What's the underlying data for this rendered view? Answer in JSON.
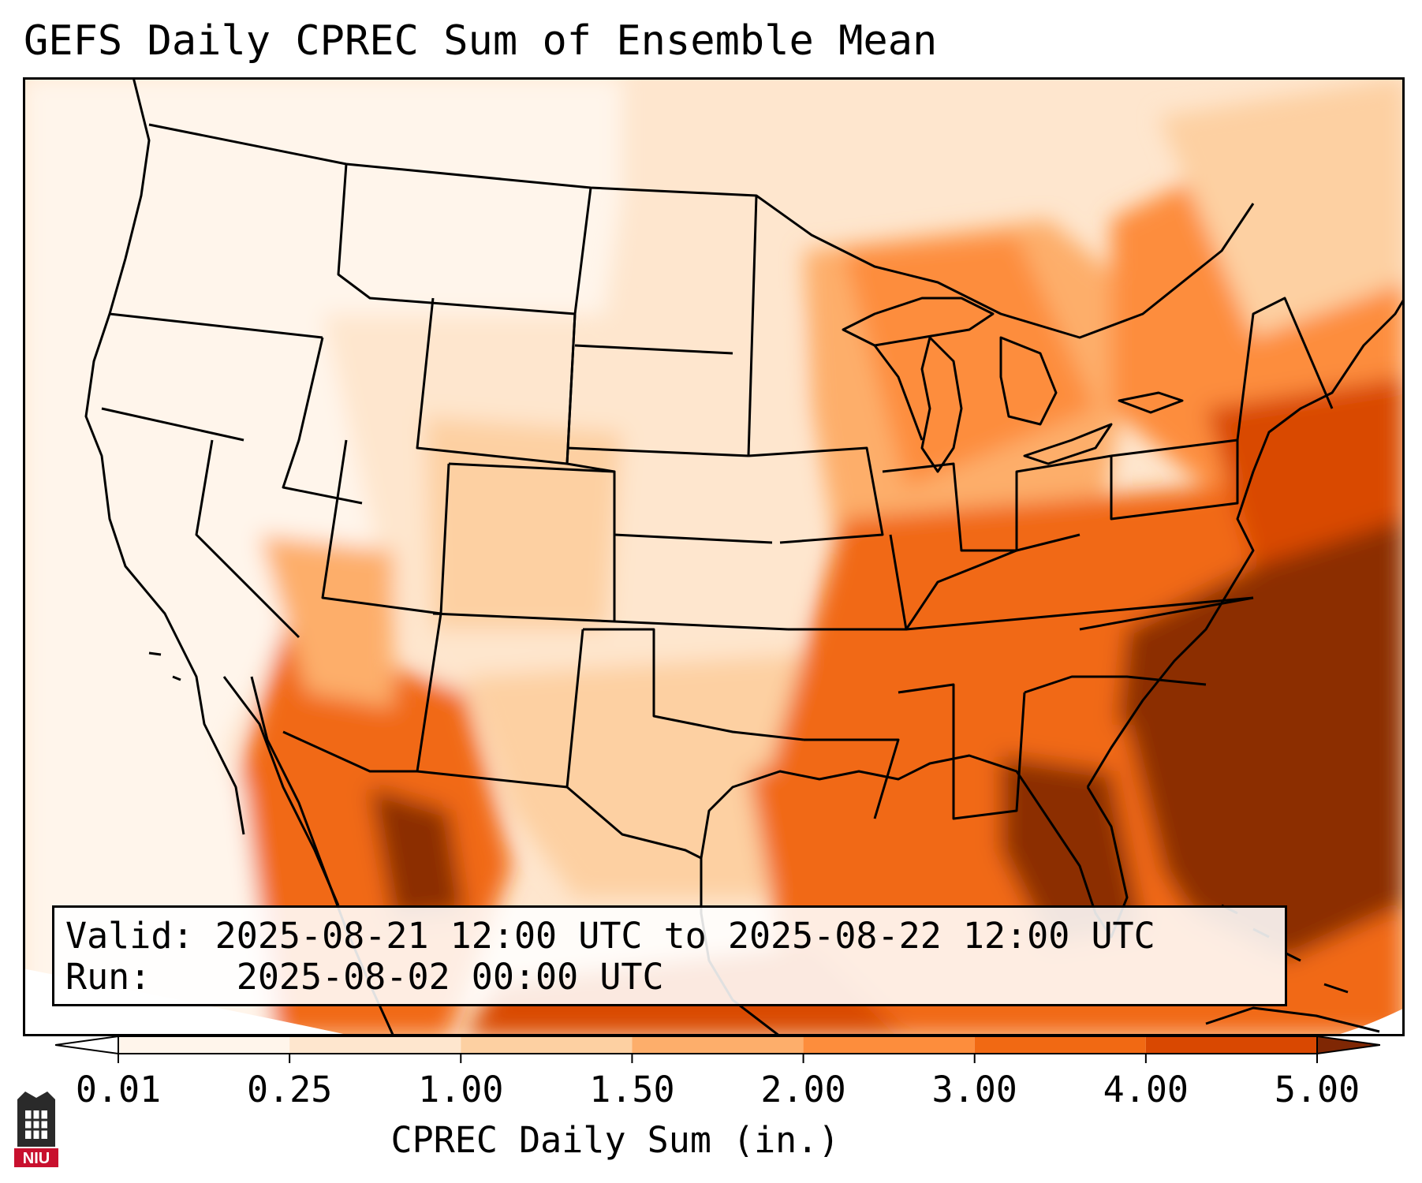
{
  "title": "GEFS Daily CPREC Sum of Ensemble Mean",
  "info": {
    "valid_label": "Valid:",
    "valid_value": "2025-08-21 12:00 UTC to 2025-08-22 12:00 UTC",
    "run_label": "Run:",
    "run_value": "2025-08-02 00:00 UTC"
  },
  "colorbar": {
    "label": "CPREC Daily Sum (in.)",
    "ticks": [
      "0.01",
      "0.25",
      "1.00",
      "1.50",
      "2.00",
      "3.00",
      "4.00",
      "5.00"
    ],
    "colors": [
      "#fff5eb",
      "#fee6ce",
      "#fdd0a2",
      "#fdae6b",
      "#fd8d3c",
      "#f16913",
      "#d94801",
      "#8c2d04"
    ],
    "under_color": "#ffffff",
    "over_color": "#7f2704"
  },
  "map": {
    "projection": "lambert-conformal",
    "region": "contiguous United States",
    "ocean_color": "#fdf3e8"
  },
  "logo": {
    "text": "NIU",
    "color": "#c8102e"
  }
}
